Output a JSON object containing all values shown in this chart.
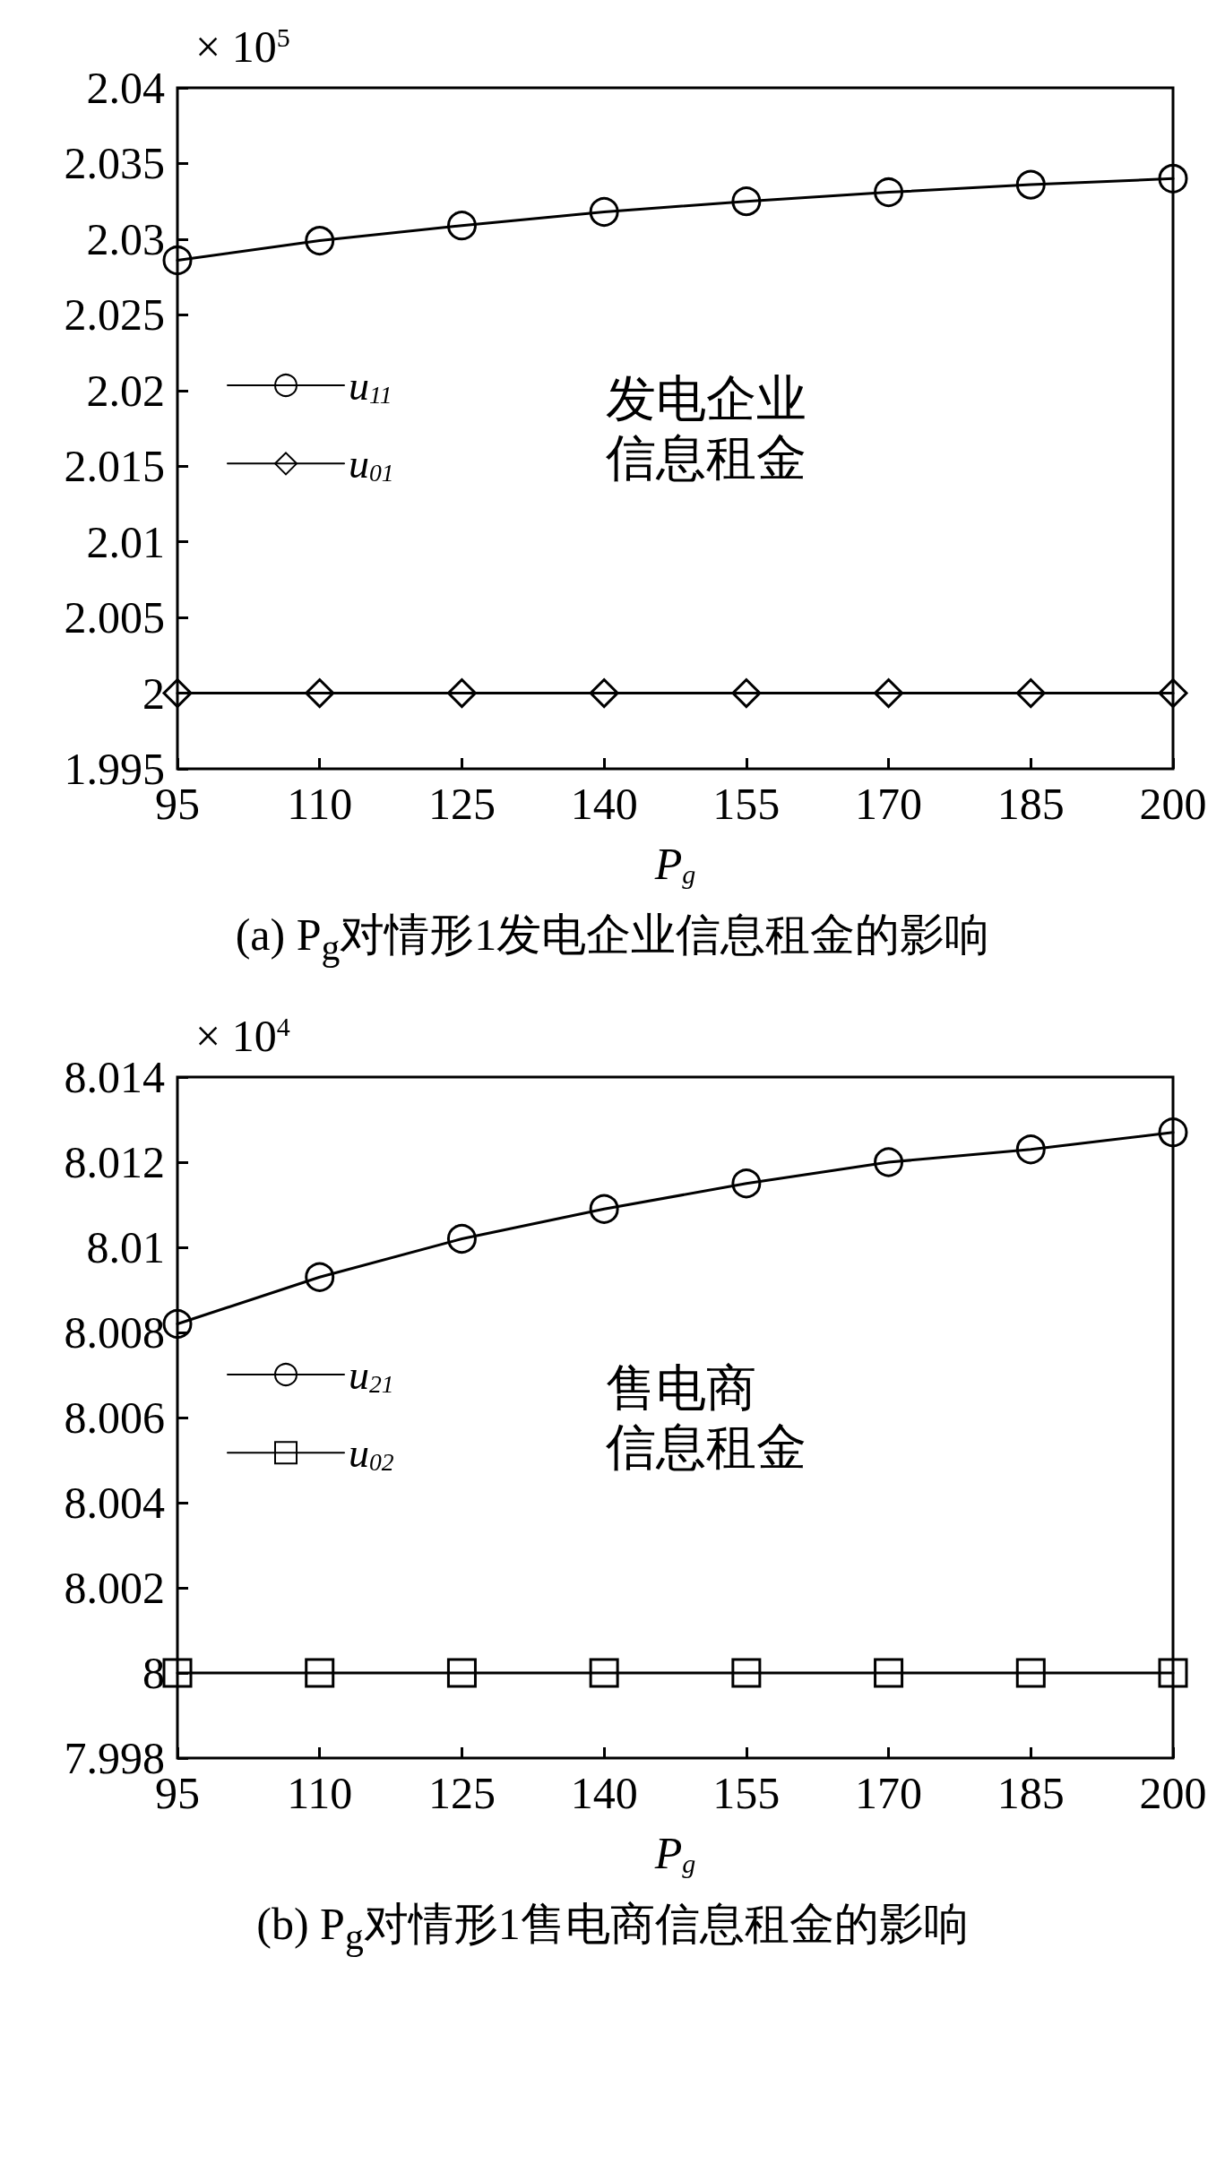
{
  "chart_data": [
    {
      "type": "line",
      "title": "(a) P$_{g}$对情形1发电企业信息租金的影响",
      "xlabel": "P$_{g}$",
      "annotations": [
        "× 10$^{5}$",
        "发电企业",
        "信息租金"
      ],
      "x": [
        95,
        110,
        125,
        140,
        155,
        170,
        185,
        200
      ],
      "series": [
        {
          "name": "u$_{11}$",
          "color": "#000000",
          "marker": "circle",
          "values": [
            2.0286,
            2.0299,
            2.0309,
            2.0318,
            2.0325,
            2.0331,
            2.0336,
            2.034
          ]
        },
        {
          "name": "u$_{01}$",
          "color": "#000000",
          "marker": "diamond",
          "values": [
            2,
            2,
            2,
            2,
            2,
            2,
            2,
            2
          ]
        }
      ],
      "xlim": [
        95,
        200
      ],
      "xticks": [
        95,
        110,
        125,
        140,
        155,
        170,
        185,
        200
      ],
      "ylim": [
        1.995,
        2.04
      ],
      "yticks": [
        1.995,
        2,
        2.005,
        2.01,
        2.015,
        2.02,
        2.025,
        2.03,
        2.035,
        2.04
      ],
      "grid": false,
      "legend": "left",
      "line_style": "solid"
    },
    {
      "type": "line",
      "title": "(b) P$_{g}$对情形1售电商信息租金的影响",
      "xlabel": "P$_{g}$",
      "annotations": [
        "× 10$^{4}$",
        "售电商",
        "信息租金"
      ],
      "x": [
        95,
        110,
        125,
        140,
        155,
        170,
        185,
        200
      ],
      "series": [
        {
          "name": "u$_{21}$",
          "color": "#000000",
          "marker": "circle",
          "values": [
            8.0082,
            8.0093,
            8.0102,
            8.0109,
            8.0115,
            8.012,
            8.0123,
            8.0127
          ]
        },
        {
          "name": "u$_{02}$",
          "color": "#000000",
          "marker": "square",
          "values": [
            8,
            8,
            8,
            8,
            8,
            8,
            8,
            8
          ]
        }
      ],
      "xlim": [
        95,
        200
      ],
      "xticks": [
        95,
        110,
        125,
        140,
        155,
        170,
        185,
        200
      ],
      "ylim": [
        7.998,
        8.014
      ],
      "yticks": [
        7.998,
        8,
        8.002,
        8.004,
        8.006,
        8.008,
        8.01,
        8.012,
        8.014
      ],
      "grid": false,
      "legend": "left",
      "line_style": "solid"
    }
  ]
}
